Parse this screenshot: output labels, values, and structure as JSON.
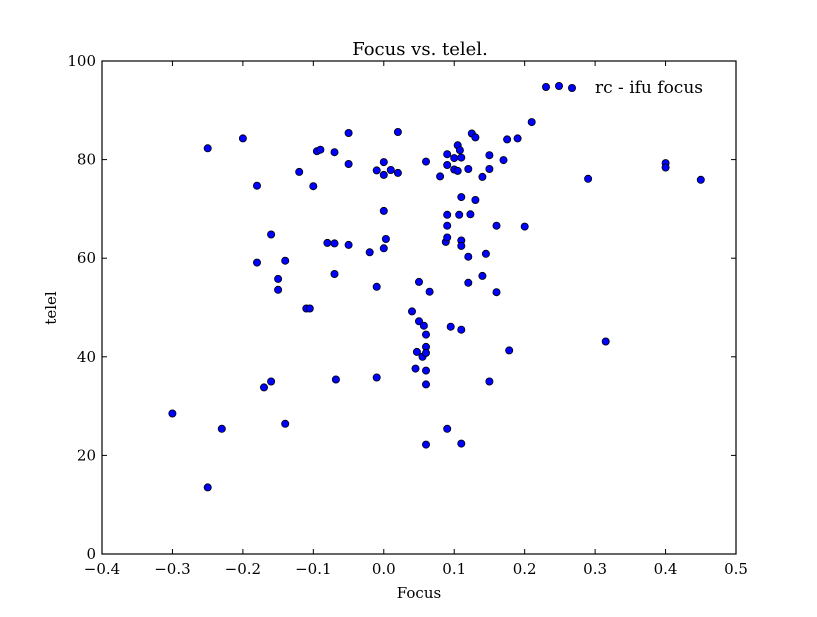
{
  "chart_data": {
    "type": "scatter",
    "title": "Focus vs. telel.",
    "xlabel": "Focus",
    "ylabel": "telel",
    "xlim": [
      -0.4,
      0.5
    ],
    "ylim": [
      0,
      100
    ],
    "xticks": [
      "−0.4",
      "−0.3",
      "−0.2",
      "−0.1",
      "0.0",
      "0.1",
      "0.2",
      "0.3",
      "0.4",
      "0.5"
    ],
    "yticks": [
      "0",
      "20",
      "40",
      "60",
      "80",
      "100"
    ],
    "grid": false,
    "legend_position": "top-right",
    "series": [
      {
        "name": "rc - ifu focus",
        "color": "#0000ff",
        "points": [
          [
            -0.3,
            28.5
          ],
          [
            -0.25,
            13.5
          ],
          [
            -0.25,
            82.3
          ],
          [
            -0.23,
            25.4
          ],
          [
            -0.2,
            84.3
          ],
          [
            -0.18,
            74.7
          ],
          [
            -0.18,
            59.1
          ],
          [
            -0.17,
            33.8
          ],
          [
            -0.16,
            64.8
          ],
          [
            -0.16,
            35.0
          ],
          [
            -0.15,
            55.8
          ],
          [
            -0.15,
            53.6
          ],
          [
            -0.14,
            59.5
          ],
          [
            -0.14,
            26.4
          ],
          [
            -0.12,
            77.5
          ],
          [
            -0.11,
            49.8
          ],
          [
            -0.105,
            49.8
          ],
          [
            -0.1,
            74.6
          ],
          [
            -0.095,
            81.7
          ],
          [
            -0.09,
            82.0
          ],
          [
            -0.08,
            63.1
          ],
          [
            -0.07,
            63.0
          ],
          [
            -0.07,
            81.5
          ],
          [
            -0.07,
            56.8
          ],
          [
            -0.068,
            35.4
          ],
          [
            -0.05,
            85.4
          ],
          [
            -0.05,
            79.1
          ],
          [
            -0.05,
            62.7
          ],
          [
            -0.02,
            61.2
          ],
          [
            -0.01,
            54.2
          ],
          [
            -0.01,
            77.8
          ],
          [
            -0.01,
            35.8
          ],
          [
            0.0,
            79.5
          ],
          [
            0.0,
            76.9
          ],
          [
            0.0,
            69.6
          ],
          [
            0.0,
            62.0
          ],
          [
            0.003,
            63.9
          ],
          [
            0.01,
            77.9
          ],
          [
            0.02,
            77.3
          ],
          [
            0.02,
            85.6
          ],
          [
            0.04,
            49.2
          ],
          [
            0.045,
            37.6
          ],
          [
            0.047,
            41.0
          ],
          [
            0.05,
            55.2
          ],
          [
            0.05,
            47.2
          ],
          [
            0.055,
            40.0
          ],
          [
            0.057,
            46.3
          ],
          [
            0.06,
            79.6
          ],
          [
            0.06,
            44.5
          ],
          [
            0.06,
            42.0
          ],
          [
            0.06,
            40.8
          ],
          [
            0.06,
            37.2
          ],
          [
            0.06,
            34.4
          ],
          [
            0.06,
            22.2
          ],
          [
            0.065,
            53.2
          ],
          [
            0.08,
            76.6
          ],
          [
            0.088,
            63.3
          ],
          [
            0.09,
            64.2
          ],
          [
            0.09,
            78.9
          ],
          [
            0.09,
            81.1
          ],
          [
            0.09,
            68.8
          ],
          [
            0.09,
            66.6
          ],
          [
            0.09,
            25.4
          ],
          [
            0.095,
            46.1
          ],
          [
            0.1,
            80.3
          ],
          [
            0.1,
            78.0
          ],
          [
            0.105,
            82.9
          ],
          [
            0.105,
            77.7
          ],
          [
            0.107,
            68.8
          ],
          [
            0.108,
            81.9
          ],
          [
            0.11,
            80.4
          ],
          [
            0.11,
            72.4
          ],
          [
            0.11,
            63.6
          ],
          [
            0.11,
            62.5
          ],
          [
            0.11,
            45.5
          ],
          [
            0.11,
            22.4
          ],
          [
            0.12,
            78.1
          ],
          [
            0.12,
            60.3
          ],
          [
            0.12,
            55.0
          ],
          [
            0.123,
            68.9
          ],
          [
            0.125,
            85.3
          ],
          [
            0.13,
            84.5
          ],
          [
            0.13,
            71.8
          ],
          [
            0.14,
            76.5
          ],
          [
            0.14,
            56.4
          ],
          [
            0.145,
            60.9
          ],
          [
            0.15,
            80.9
          ],
          [
            0.15,
            78.1
          ],
          [
            0.15,
            35.0
          ],
          [
            0.16,
            66.6
          ],
          [
            0.16,
            53.1
          ],
          [
            0.17,
            79.9
          ],
          [
            0.175,
            84.1
          ],
          [
            0.178,
            41.3
          ],
          [
            0.19,
            84.3
          ],
          [
            0.2,
            66.4
          ],
          [
            0.21,
            87.6
          ],
          [
            0.29,
            76.1
          ],
          [
            0.315,
            43.1
          ],
          [
            0.4,
            79.3
          ],
          [
            0.4,
            78.4
          ],
          [
            0.45,
            75.9
          ]
        ]
      }
    ]
  }
}
